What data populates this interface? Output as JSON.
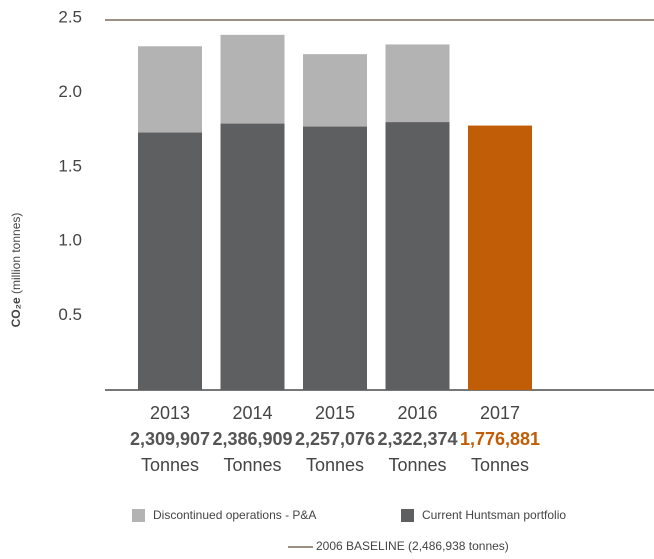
{
  "chart_data": {
    "type": "bar",
    "ylabel": {
      "symbol": "CO₂e",
      "unit": "(million tonnes)"
    },
    "categories": [
      "2013",
      "2014",
      "2015",
      "2016",
      "2017"
    ],
    "totals": {
      "name": "Discontinued operations - P&A",
      "color": "#b3b3b3",
      "values": [
        2.309907,
        2.386909,
        2.257076,
        2.322374,
        1.776881
      ],
      "value_labels": [
        "2,309,907",
        "2,386,909",
        "2,257,076",
        "2,322,374",
        "1,776,881"
      ],
      "label_colors": [
        "#555555",
        "#555555",
        "#555555",
        "#555555",
        "#c05d06"
      ]
    },
    "series": [
      {
        "name": "Current Huntsman portfolio",
        "color": "#5e5f61",
        "values": [
          1.73,
          1.79,
          1.77,
          1.8,
          1.776881
        ],
        "colors": [
          "#5e5f61",
          "#5e5f61",
          "#5e5f61",
          "#5e5f61",
          "#c05d06"
        ]
      }
    ],
    "unit": "Tonnes",
    "baseline": {
      "value": 2.486938,
      "label": "2006 BASELINE (2,486,938 tonnes)",
      "color": "#9b9083"
    },
    "ylim": [
      0,
      2.5
    ],
    "yticks": [
      0.5,
      {
        "value": 1.0,
        "label": "1.0"
      },
      1.5,
      {
        "value": 2.0,
        "label": "2.0"
      },
      2.5
    ]
  }
}
